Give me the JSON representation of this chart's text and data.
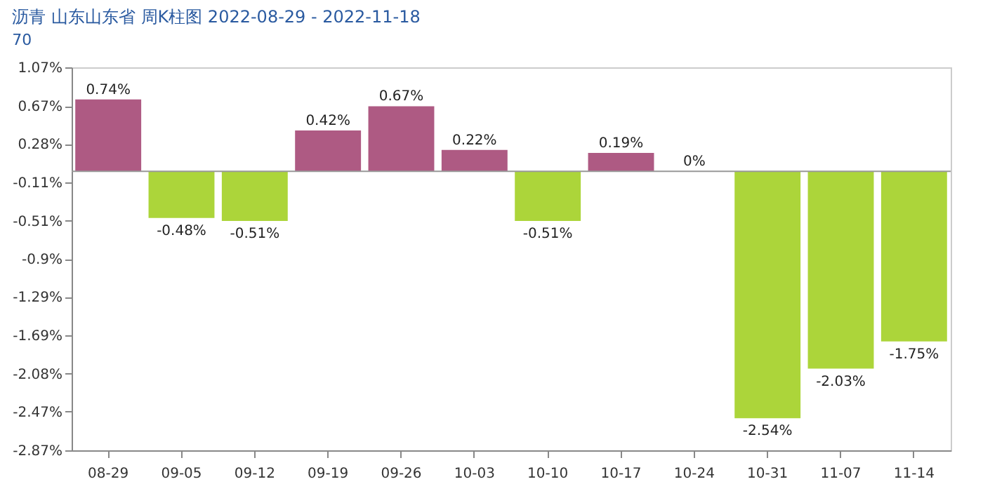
{
  "chart_data": {
    "type": "bar",
    "title": "沥青 山东山东省 周K柱图 2022-08-29 - 2022-11-18",
    "subtitle": "70",
    "categories": [
      "08-29",
      "09-05",
      "09-12",
      "09-19",
      "09-26",
      "10-03",
      "10-10",
      "10-17",
      "10-24",
      "10-31",
      "11-07",
      "11-14"
    ],
    "values": [
      0.74,
      -0.48,
      -0.51,
      0.42,
      0.67,
      0.22,
      -0.51,
      0.19,
      0,
      -2.54,
      -2.03,
      -1.75
    ],
    "colors": [
      "#ae5a83",
      "#acd53a",
      "#acd53a",
      "#ae5a83",
      "#ae5a83",
      "#ae5a83",
      "#acd53a",
      "#ae5a83",
      "#ae5a83",
      "#acd53a",
      "#acd53a",
      "#acd53a"
    ],
    "value_labels": [
      "0.74%",
      "-0.48%",
      "-0.51%",
      "0.42%",
      "0.67%",
      "0.22%",
      "-0.51%",
      "0.19%",
      "0%",
      "-2.54%",
      "-2.03%",
      "-1.75%"
    ],
    "ylim": [
      -2.87,
      1.07
    ],
    "yticks": [
      {
        "value": 1.07,
        "label": "1.07%"
      },
      {
        "value": 0.67,
        "label": "0.67%"
      },
      {
        "value": 0.28,
        "label": "0.28%"
      },
      {
        "value": -0.11,
        "label": "-0.11%"
      },
      {
        "value": -0.51,
        "label": "-0.51%"
      },
      {
        "value": -0.9,
        "label": "-0.9%"
      },
      {
        "value": -1.29,
        "label": "-1.29%"
      },
      {
        "value": -1.69,
        "label": "-1.69%"
      },
      {
        "value": -2.08,
        "label": "-2.08%"
      },
      {
        "value": -2.47,
        "label": "-2.47%"
      },
      {
        "value": -2.87,
        "label": "-2.87%"
      }
    ],
    "ref_lines": [
      {
        "axis": "y",
        "value": 0,
        "color": "#999999"
      }
    ]
  }
}
